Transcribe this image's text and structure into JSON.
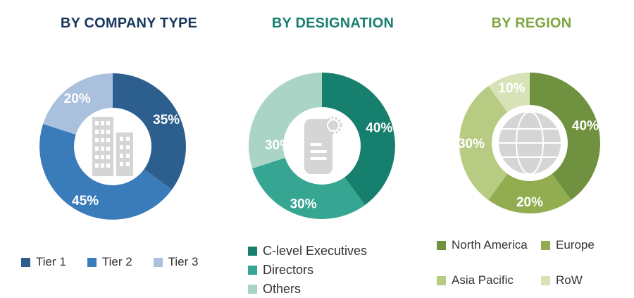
{
  "page": {
    "background": "#ffffff",
    "slice_label_color": "#ffffff",
    "legend_text_color": "#333333",
    "icon_color": "#d5d5d5"
  },
  "chart_data": [
    {
      "type": "donut",
      "title": "BY COMPANY TYPE",
      "title_color": "#17375d",
      "center_icon": "building-icon",
      "categories": [
        "Tier 1",
        "Tier 2",
        "Tier 3"
      ],
      "values": [
        35,
        45,
        20
      ],
      "labels": [
        "35%",
        "45%",
        "20%"
      ],
      "colors": [
        "#2d5f8e",
        "#3a7bb9",
        "#aac1de"
      ],
      "start_angle_deg": 0,
      "direction": "clockwise",
      "legend_position": "bottom-horizontal"
    },
    {
      "type": "donut",
      "title": "BY DESIGNATION",
      "title_color": "#177f6d",
      "center_icon": "id-badge-icon",
      "categories": [
        "C-level Executives",
        "Directors",
        "Others"
      ],
      "values": [
        40,
        30,
        30
      ],
      "labels": [
        "40%",
        "30%",
        "30%"
      ],
      "colors": [
        "#177f6d",
        "#36a592",
        "#aad4c6"
      ],
      "start_angle_deg": 0,
      "direction": "clockwise",
      "legend_position": "bottom-vertical",
      "label_pos": [
        null,
        null,
        {
          "angle": 272,
          "radius": 62
        }
      ]
    },
    {
      "type": "donut",
      "title": "BY REGION",
      "title_color": "#7ea43e",
      "center_icon": "globe-icon",
      "categories": [
        "North America",
        "Europe",
        "Asia Pacific",
        "RoW"
      ],
      "values": [
        40,
        20,
        30,
        10
      ],
      "labels": [
        "40%",
        "20%",
        "30%",
        "10%"
      ],
      "colors": [
        "#6f9140",
        "#92ad4f",
        "#b7cc82",
        "#d8e2b7"
      ],
      "start_angle_deg": 0,
      "direction": "clockwise",
      "legend_position": "bottom-grid"
    }
  ]
}
